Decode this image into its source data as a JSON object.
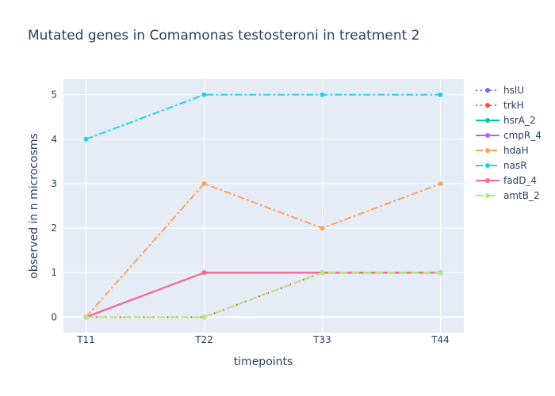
{
  "chart_data": {
    "type": "line",
    "title": "Mutated genes in Comamonas testosteroni in treatment 2",
    "xlabel": "timepoints",
    "ylabel": "observed in n microcosms",
    "categories": [
      "T11",
      "T22",
      "T33",
      "T44"
    ],
    "yticks": [
      0,
      1,
      2,
      3,
      4,
      5
    ],
    "ylim": [
      -0.35,
      5.35
    ],
    "grid": true,
    "legend_position": "right",
    "series": [
      {
        "name": "hslU",
        "values": [
          0,
          0,
          1,
          1
        ],
        "color": "#636efa",
        "dash": "dot"
      },
      {
        "name": "trkH",
        "values": [
          0,
          0,
          1,
          1
        ],
        "color": "#EF553B",
        "dash": "dot"
      },
      {
        "name": "hsrA_2",
        "values": [
          0,
          1,
          1,
          1
        ],
        "color": "#00cc96",
        "dash": "solid"
      },
      {
        "name": "cmpR_4",
        "values": [
          0,
          1,
          1,
          1
        ],
        "color": "#ab63fa",
        "dash": "solid"
      },
      {
        "name": "hdaH",
        "values": [
          0,
          3,
          2,
          3
        ],
        "color": "#FFA15A",
        "dash": "dashdot"
      },
      {
        "name": "nasR",
        "values": [
          4,
          5,
          5,
          5
        ],
        "color": "#19d3f3",
        "dash": "dashdot"
      },
      {
        "name": "fadD_4",
        "values": [
          0,
          1,
          1,
          1
        ],
        "color": "#FF6692",
        "dash": "solid"
      },
      {
        "name": "amtB_2",
        "values": [
          0,
          0,
          1,
          1
        ],
        "color": "#B6E880",
        "dash": "longdash"
      }
    ]
  }
}
